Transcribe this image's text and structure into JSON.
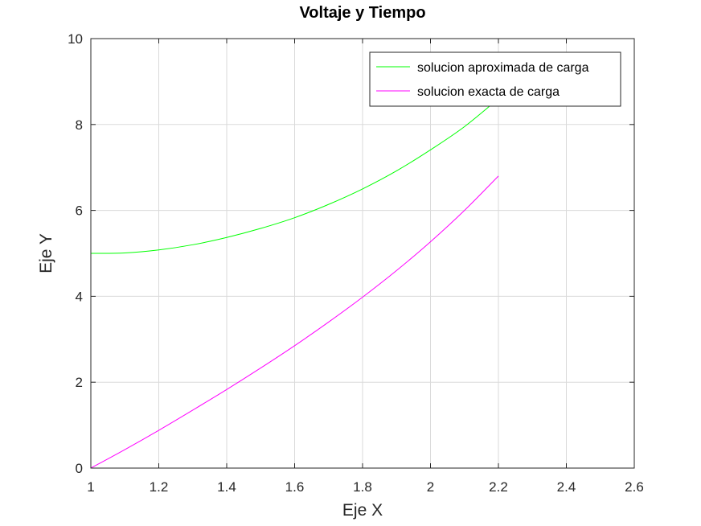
{
  "chart_data": {
    "type": "line",
    "title": "Voltaje y Tiempo",
    "xlabel": "Eje X",
    "ylabel": "Eje Y",
    "xlim": [
      1,
      2.6
    ],
    "ylim": [
      0,
      10
    ],
    "x_ticks": [
      1,
      1.2,
      1.4,
      1.6,
      1.8,
      2,
      2.2,
      2.4,
      2.6
    ],
    "x_tick_labels": [
      "1",
      "1.2",
      "1.4",
      "1.6",
      "1.8",
      "2",
      "2.2",
      "2.4",
      "2.6"
    ],
    "y_ticks": [
      0,
      2,
      4,
      6,
      8,
      10
    ],
    "y_tick_labels": [
      "0",
      "2",
      "4",
      "6",
      "8",
      "10"
    ],
    "grid": true,
    "legend_position": "top-right",
    "series": [
      {
        "name": "solucion aproximada de carga",
        "color": "#00ff00",
        "x": [
          1.0,
          1.1,
          1.2,
          1.3,
          1.4,
          1.5,
          1.6,
          1.7,
          1.8,
          1.9,
          2.0,
          2.1,
          2.2
        ],
        "y": [
          5.0,
          5.01,
          5.08,
          5.2,
          5.37,
          5.58,
          5.83,
          6.14,
          6.5,
          6.92,
          7.41,
          7.95,
          8.6
        ]
      },
      {
        "name": "solucion exacta de carga",
        "color": "#ff00ff",
        "x": [
          1.0,
          1.1,
          1.2,
          1.3,
          1.4,
          1.5,
          1.6,
          1.7,
          1.8,
          1.9,
          2.0,
          2.1,
          2.2
        ],
        "y": [
          0.0,
          0.43,
          0.88,
          1.35,
          1.83,
          2.33,
          2.85,
          3.4,
          3.98,
          4.6,
          5.27,
          6.0,
          6.8
        ]
      }
    ]
  }
}
